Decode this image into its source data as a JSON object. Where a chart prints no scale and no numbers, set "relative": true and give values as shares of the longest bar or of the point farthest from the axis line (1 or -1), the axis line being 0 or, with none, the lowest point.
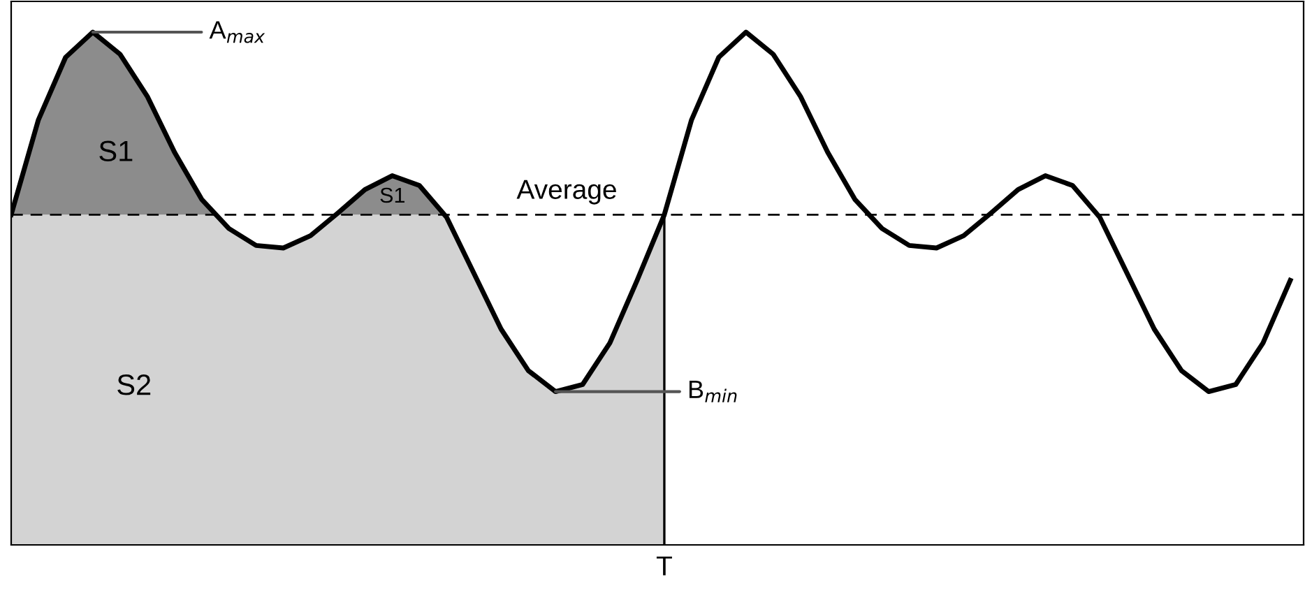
{
  "chart_data": {
    "type": "line",
    "relative": true,
    "grid": false,
    "legend": false,
    "marker": "none",
    "line_style": "solid",
    "categories": [
      null,
      null,
      null,
      null,
      null,
      null,
      null,
      null,
      null,
      null,
      null,
      null,
      null,
      null,
      null,
      null,
      null,
      null,
      null,
      null,
      null,
      null,
      null,
      null,
      null,
      null,
      null,
      null,
      null,
      null,
      null,
      null,
      null,
      null,
      null,
      null,
      null,
      null,
      null,
      null,
      null,
      null,
      null,
      null,
      null,
      null,
      null,
      null
    ],
    "series": [
      {
        "color": "#000000",
        "values": [
          0.644,
          0.829,
          0.951,
          1,
          0.957,
          0.875,
          0.766,
          0.674,
          0.617,
          0.584,
          0.579,
          0.603,
          0.647,
          0.693,
          0.72,
          0.701,
          0.639,
          0.53,
          0.421,
          0.34,
          0.299,
          0.313,
          0.394,
          0.516,
          0.644,
          0.829,
          0.951,
          1,
          0.957,
          0.875,
          0.766,
          0.674,
          0.617,
          0.584,
          0.579,
          0.603,
          0.647,
          0.693,
          0.72,
          0.701,
          0.639,
          0.53,
          0.421,
          0.34,
          0.299,
          0.313,
          0.394,
          0.516
        ]
      }
    ],
    "ref_lines": [
      {
        "axis": "y",
        "value": 0.644,
        "label": "Average",
        "line_style": "dashed",
        "color": "#000000"
      }
    ],
    "annotations": [
      "A$_{max}$",
      "B$_{min}$",
      "S1",
      "S1",
      "S2",
      "T"
    ]
  }
}
